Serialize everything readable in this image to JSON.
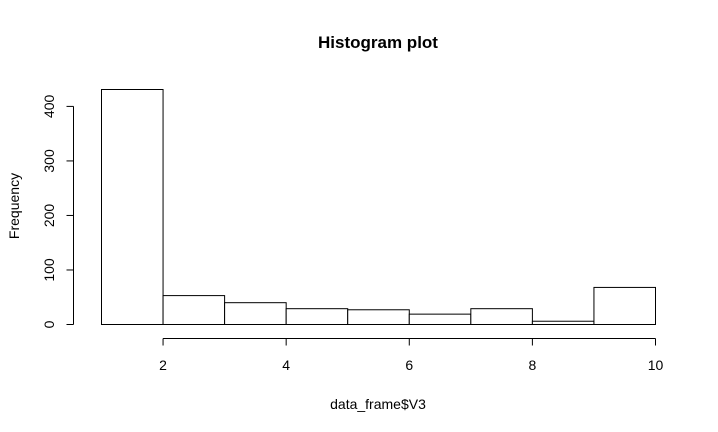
{
  "chart_data": {
    "type": "bar",
    "title": "Histogram plot",
    "xlabel": "data_frame$V3",
    "ylabel": "Frequency",
    "bins": [
      {
        "x0": 1,
        "x1": 2,
        "value": 431
      },
      {
        "x0": 2,
        "x1": 3,
        "value": 53
      },
      {
        "x0": 3,
        "x1": 4,
        "value": 40
      },
      {
        "x0": 4,
        "x1": 5,
        "value": 29
      },
      {
        "x0": 5,
        "x1": 6,
        "value": 27
      },
      {
        "x0": 6,
        "x1": 7,
        "value": 19
      },
      {
        "x0": 7,
        "x1": 8,
        "value": 29
      },
      {
        "x0": 8,
        "x1": 9,
        "value": 6
      },
      {
        "x0": 9,
        "x1": 10,
        "value": 68
      }
    ],
    "xlim": [
      1,
      10
    ],
    "ylim": [
      0,
      431
    ],
    "x_ticks": [
      2,
      4,
      6,
      8,
      10
    ],
    "x_tick_labels": [
      "2",
      "4",
      "6",
      "8",
      "10"
    ],
    "y_ticks": [
      0,
      100,
      200,
      300,
      400
    ],
    "y_tick_labels": [
      "0",
      "100",
      "200",
      "300",
      "400"
    ],
    "grid": false,
    "legend": "none"
  }
}
